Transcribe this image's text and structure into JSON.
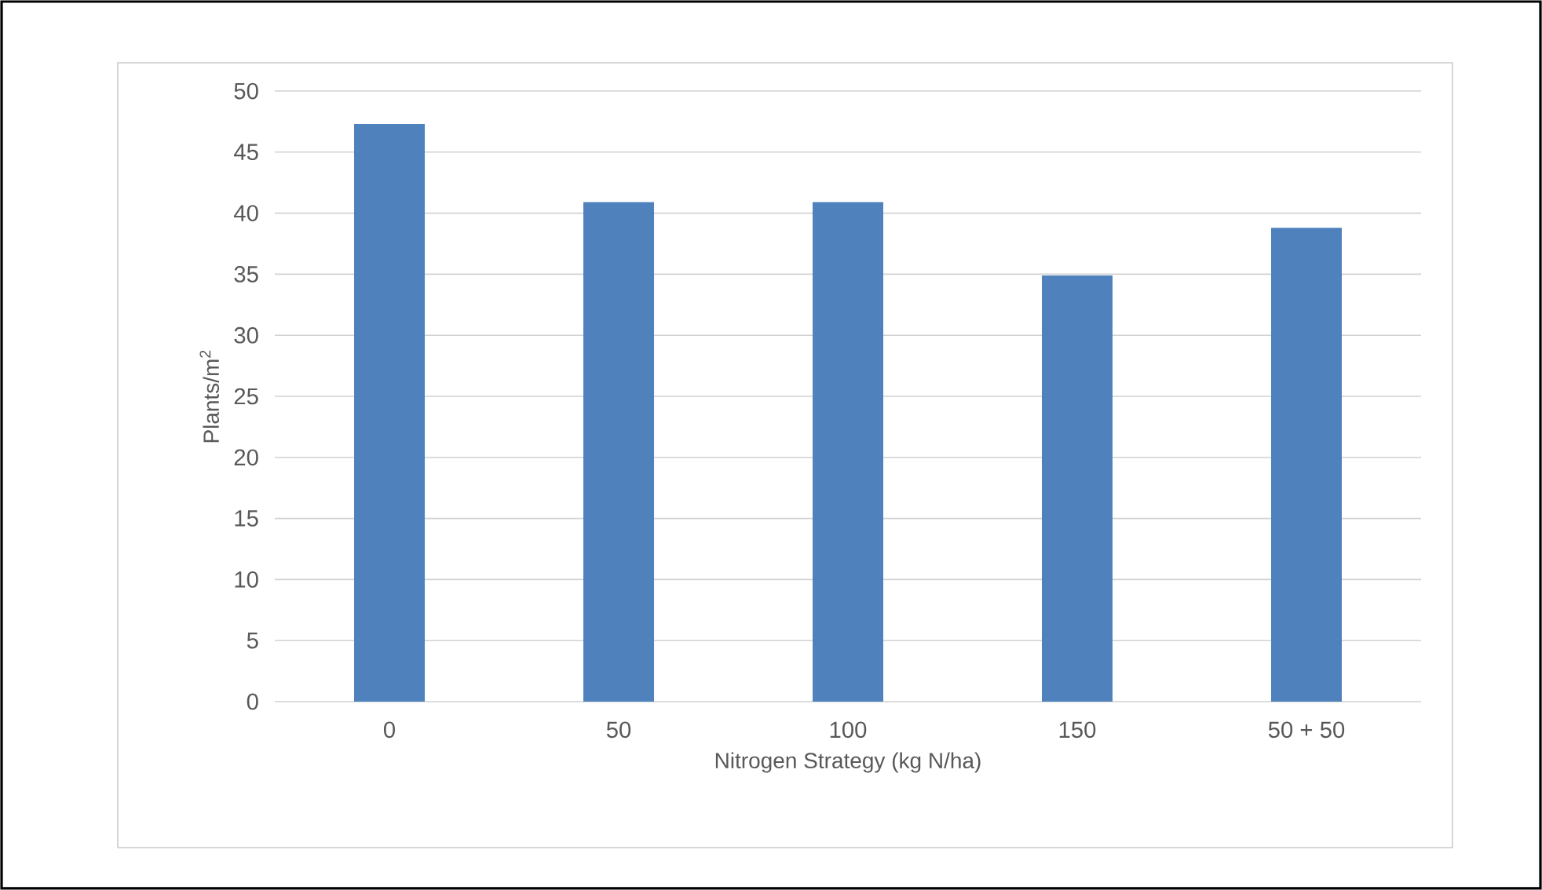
{
  "chart_data": {
    "type": "bar",
    "xlabel": "Nitrogen Strategy (kg N/ha)",
    "ylabel": "Plants/m$^{2}$",
    "categories": [
      "0",
      "50",
      "100",
      "150",
      "50 + 50"
    ],
    "values": [
      47.3,
      40.9,
      40.9,
      34.9,
      38.8
    ],
    "color": "#4f81bd",
    "ylim": [
      0,
      50
    ],
    "yticks": [
      0,
      5,
      10,
      15,
      20,
      25,
      30,
      35,
      40,
      45,
      50
    ],
    "grid": "y"
  }
}
